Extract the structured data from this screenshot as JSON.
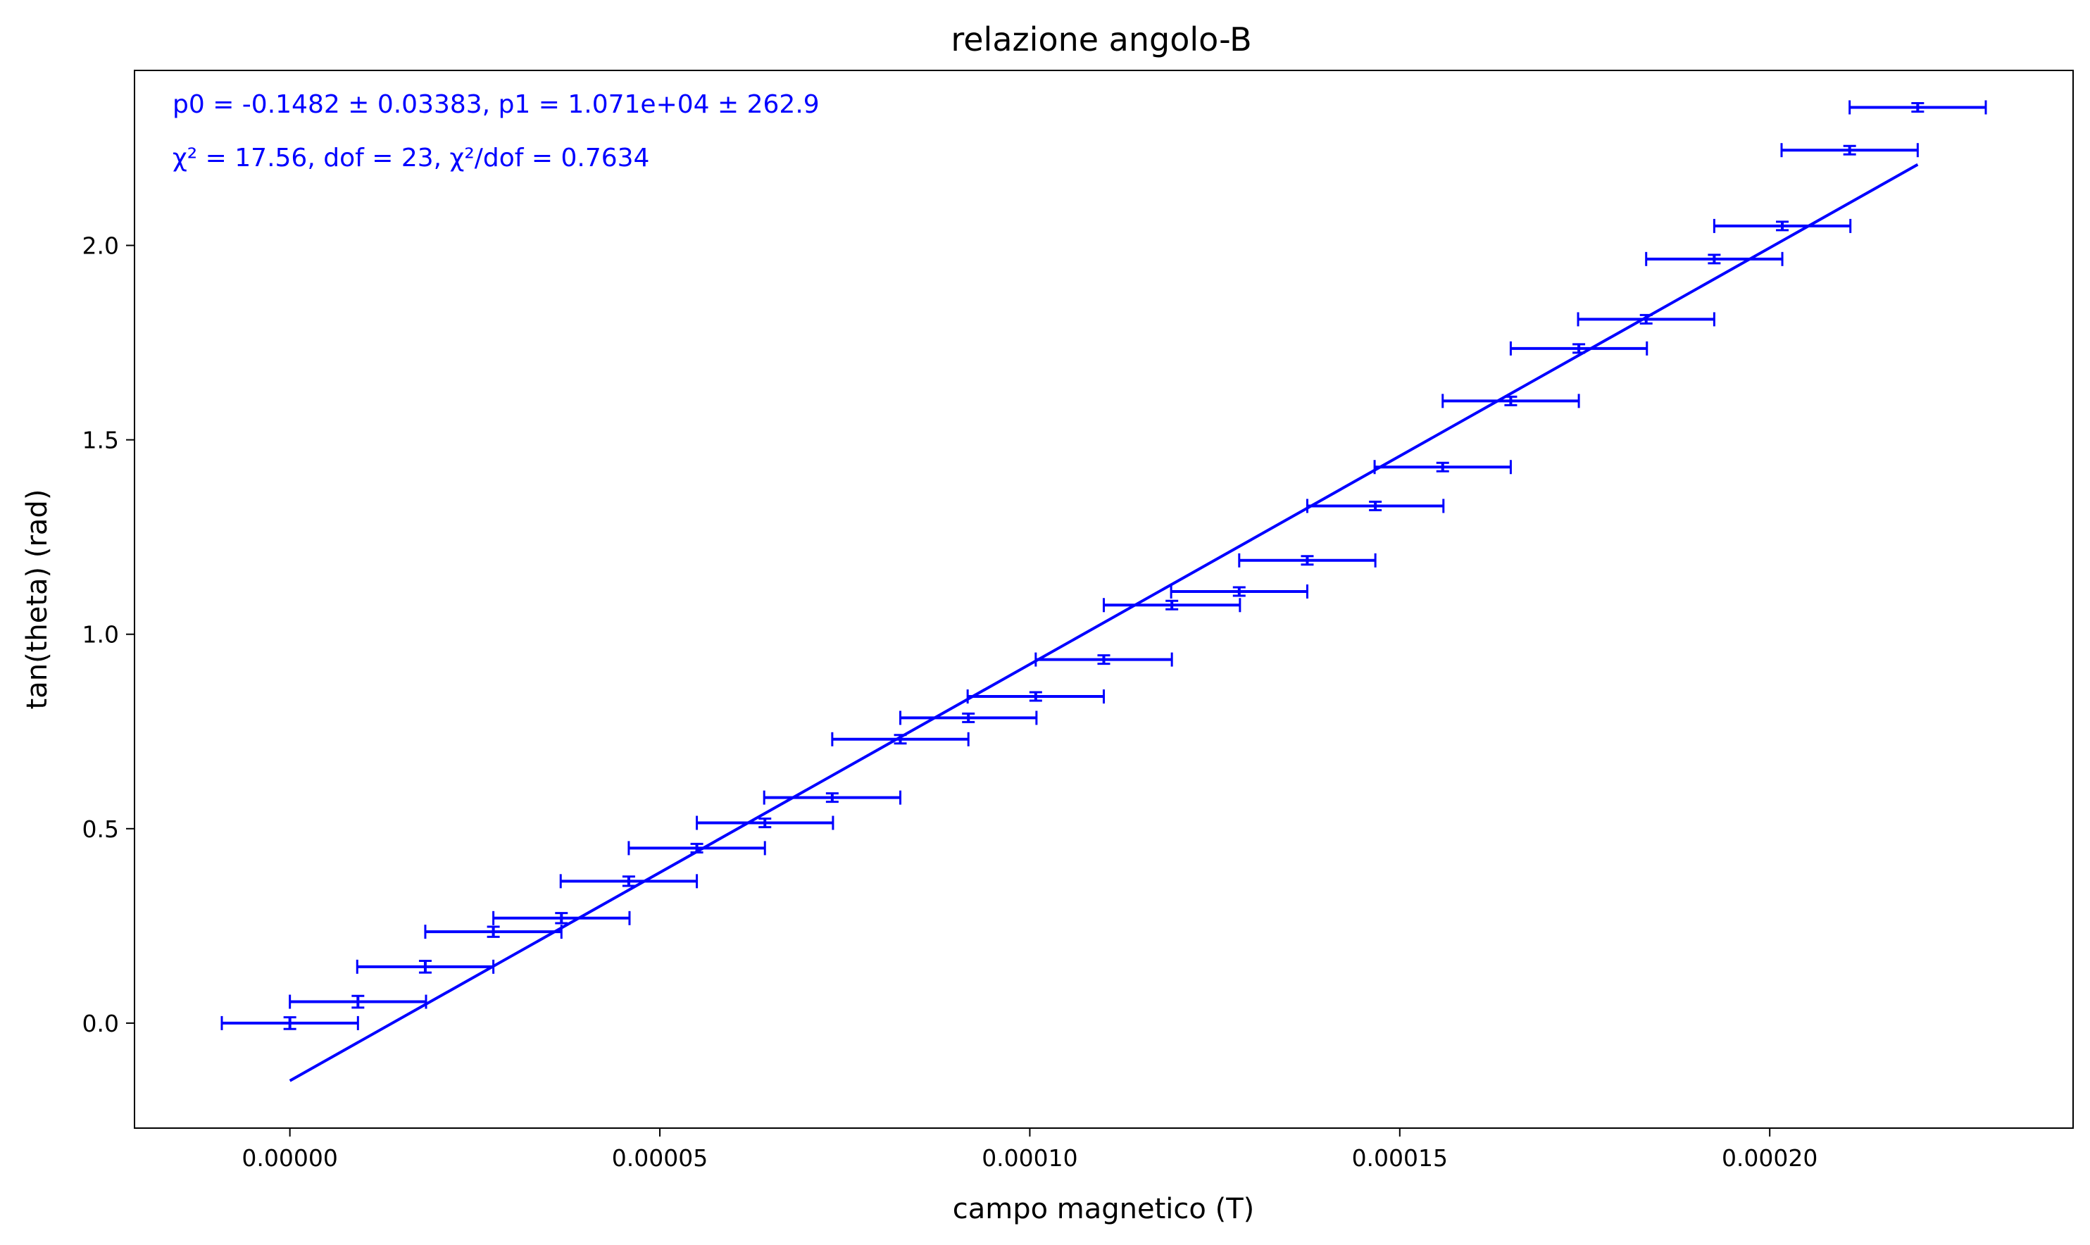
{
  "chart_data": {
    "type": "scatter",
    "title": "relazione angolo-B",
    "xlabel": "campo magnetico (T)",
    "ylabel": "tan(theta) (rad)",
    "xlim": [
      -2.1e-05,
      0.000241
    ],
    "ylim": [
      -0.27,
      2.45
    ],
    "grid": false,
    "color": "#0000ff",
    "x_ticks": [
      {
        "value": 0.0,
        "label": "0.00000"
      },
      {
        "value": 5e-05,
        "label": "0.00005"
      },
      {
        "value": 0.0001,
        "label": "0.00010"
      },
      {
        "value": 0.00015,
        "label": "0.00015"
      },
      {
        "value": 0.0002,
        "label": "0.00020"
      }
    ],
    "y_ticks": [
      {
        "value": 0.0,
        "label": "0.0"
      },
      {
        "value": 0.5,
        "label": "0.5"
      },
      {
        "value": 1.0,
        "label": "1.0"
      },
      {
        "value": 1.5,
        "label": "1.5"
      },
      {
        "value": 2.0,
        "label": "2.0"
      }
    ],
    "annotations": [
      "p0 = -0.1482 ± 0.03383, p1 = 1.071e+04 ± 262.9",
      "χ² = 17.56, dof = 23, χ²/dof = 0.7634"
    ],
    "x_error": 9.2e-06,
    "points": [
      {
        "x": 0.0,
        "y": 0.0,
        "yerr": 0.015
      },
      {
        "x": 9.2e-06,
        "y": 0.055,
        "yerr": 0.015
      },
      {
        "x": 1.83e-05,
        "y": 0.145,
        "yerr": 0.015
      },
      {
        "x": 2.75e-05,
        "y": 0.235,
        "yerr": 0.013
      },
      {
        "x": 3.67e-05,
        "y": 0.27,
        "yerr": 0.013
      },
      {
        "x": 4.58e-05,
        "y": 0.365,
        "yerr": 0.012
      },
      {
        "x": 5.5e-05,
        "y": 0.45,
        "yerr": 0.011
      },
      {
        "x": 6.42e-05,
        "y": 0.515,
        "yerr": 0.011
      },
      {
        "x": 7.33e-05,
        "y": 0.58,
        "yerr": 0.01
      },
      {
        "x": 8.25e-05,
        "y": 0.73,
        "yerr": 0.009
      },
      {
        "x": 9.17e-05,
        "y": 0.785,
        "yerr": 0.008
      },
      {
        "x": 0.0001008,
        "y": 0.84,
        "yerr": 0.008
      },
      {
        "x": 0.00011,
        "y": 0.935,
        "yerr": 0.007
      },
      {
        "x": 0.0001192,
        "y": 1.075,
        "yerr": 0.006
      },
      {
        "x": 0.0001283,
        "y": 1.11,
        "yerr": 0.006
      },
      {
        "x": 0.0001375,
        "y": 1.19,
        "yerr": 0.006
      },
      {
        "x": 0.0001467,
        "y": 1.33,
        "yerr": 0.005
      },
      {
        "x": 0.0001558,
        "y": 1.43,
        "yerr": 0.005
      },
      {
        "x": 0.000165,
        "y": 1.6,
        "yerr": 0.004
      },
      {
        "x": 0.0001742,
        "y": 1.735,
        "yerr": 0.004
      },
      {
        "x": 0.0001833,
        "y": 1.81,
        "yerr": 0.004
      },
      {
        "x": 0.0001925,
        "y": 1.965,
        "yerr": 0.003
      },
      {
        "x": 0.0002017,
        "y": 2.05,
        "yerr": 0.003
      },
      {
        "x": 0.0002108,
        "y": 2.245,
        "yerr": 0.003
      },
      {
        "x": 0.00022,
        "y": 2.355,
        "yerr": 0.003
      }
    ],
    "fit": {
      "p0": -0.1482,
      "p1": 10710,
      "x_range": [
        0.0,
        0.00022
      ]
    }
  }
}
